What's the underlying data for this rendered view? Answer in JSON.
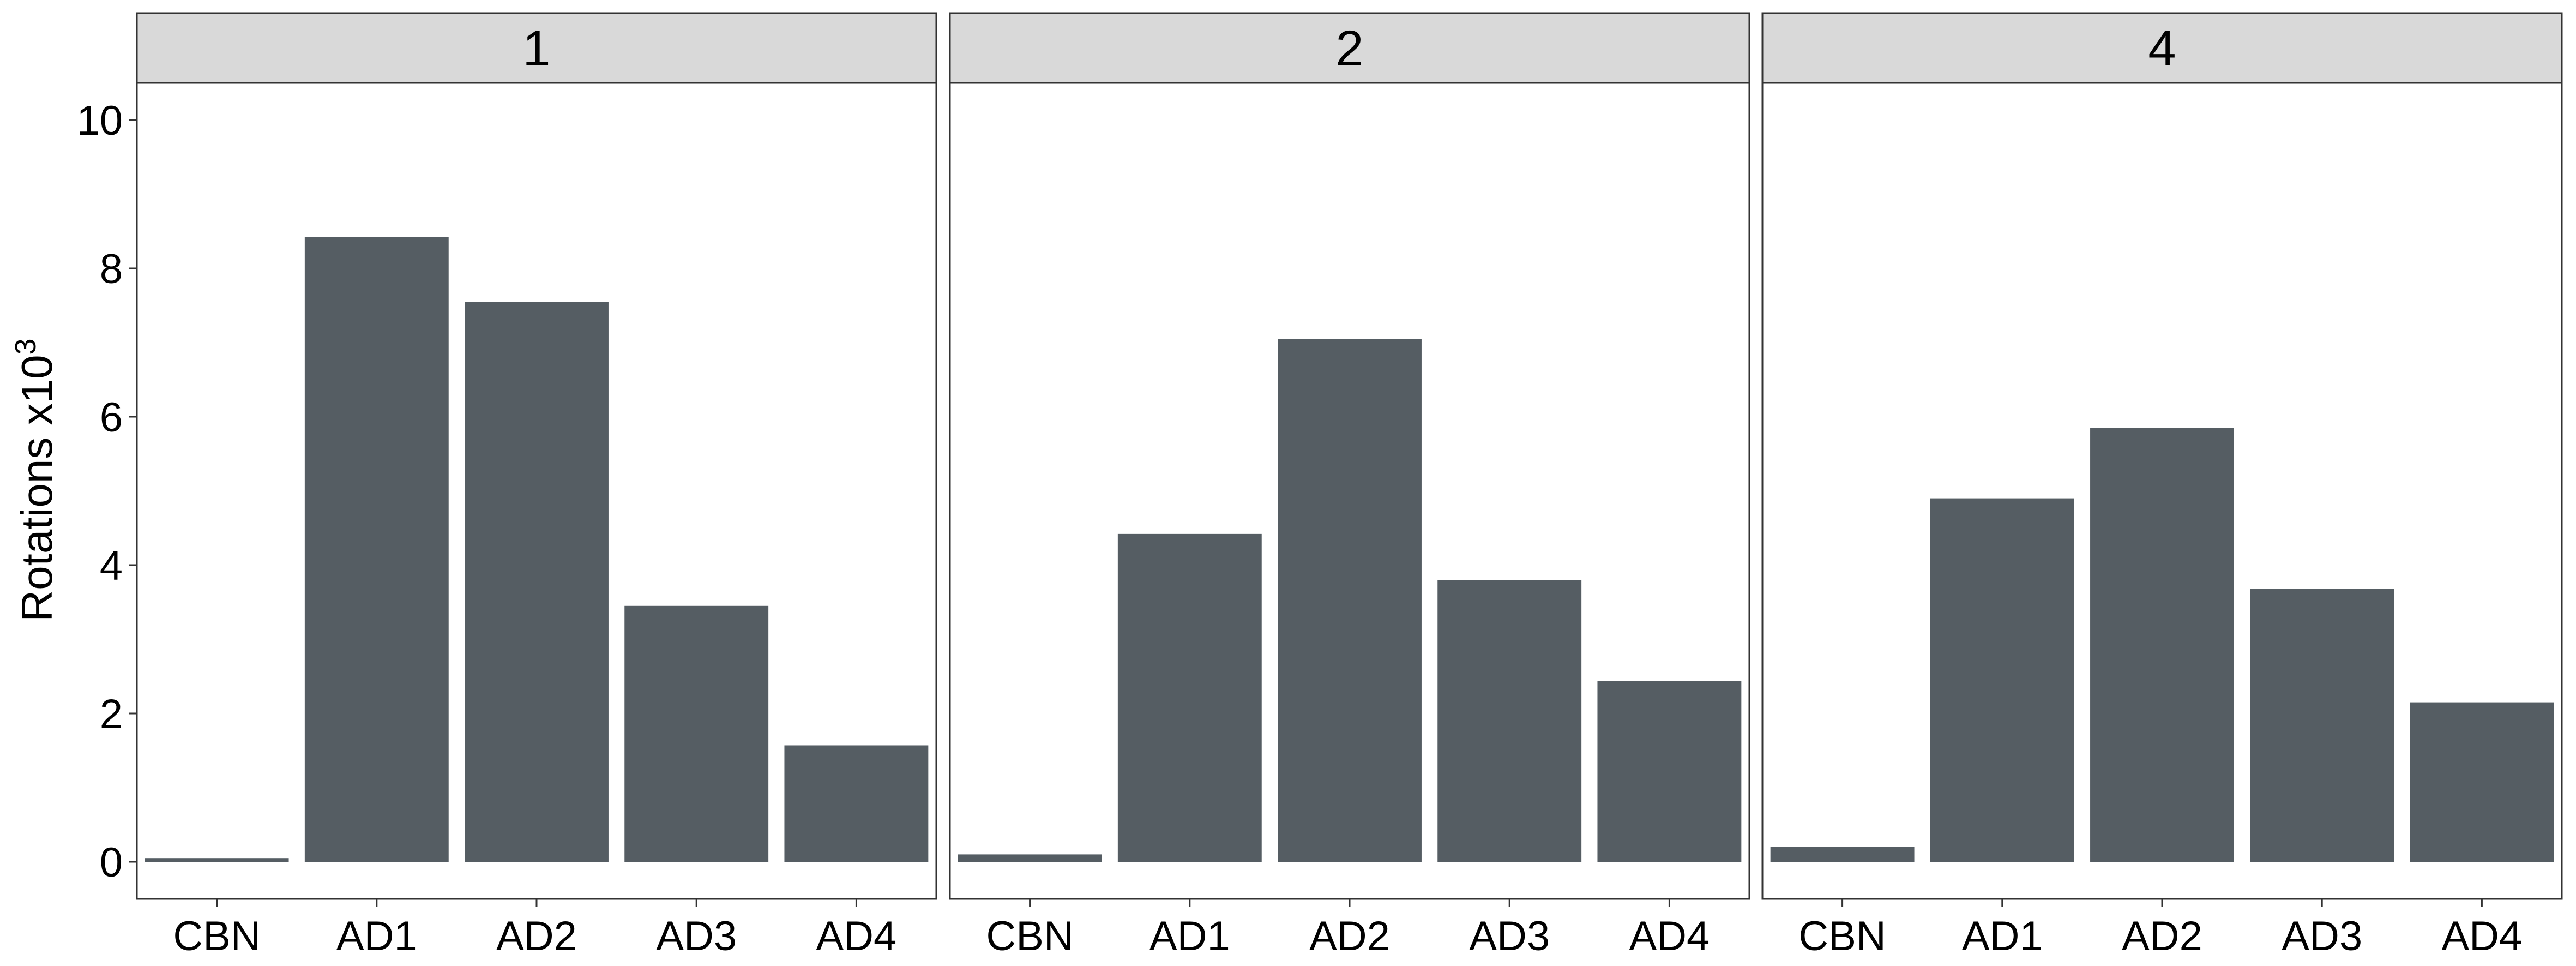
{
  "chart_data": {
    "type": "bar",
    "facets": [
      "1",
      "2",
      "4"
    ],
    "categories": [
      "CBN",
      "AD1",
      "AD2",
      "AD3",
      "AD4"
    ],
    "panels": [
      {
        "label": "1",
        "values": [
          0.05,
          8.42,
          7.55,
          3.45,
          1.57
        ]
      },
      {
        "label": "2",
        "values": [
          0.1,
          4.42,
          7.05,
          3.8,
          2.44
        ]
      },
      {
        "label": "4",
        "values": [
          0.2,
          4.9,
          5.85,
          3.68,
          2.15
        ]
      }
    ],
    "ylabel_main": "Rotations x10",
    "ylabel_sup": "3",
    "ylim": [
      -0.5,
      10.5
    ],
    "yticks": [
      0,
      2,
      4,
      6,
      8,
      10
    ],
    "bar_color": "#555d63",
    "strip_color": "#d9d9d9",
    "grid": false,
    "legend": "none"
  }
}
